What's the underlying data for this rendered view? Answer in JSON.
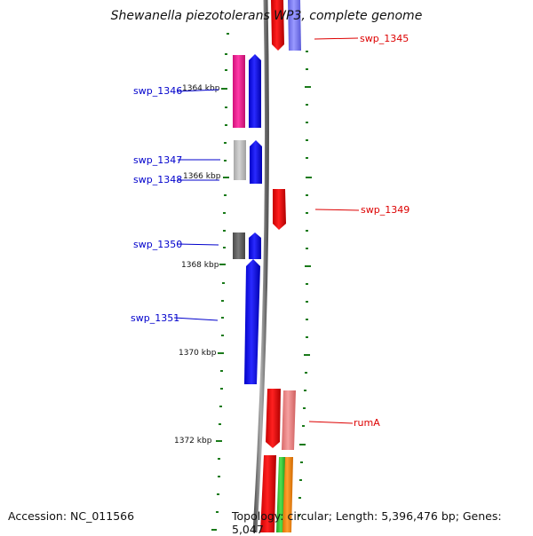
{
  "title": "Shewanella piezotolerans WP3, complete genome",
  "footer": {
    "accession": "Accession: NC_011566",
    "summary": "Topology: circular; Length: 5,396,476 bp; Genes: 5,047"
  },
  "colors": {
    "backbone": "#888888",
    "tick": "#1a7a1a",
    "label_left": "#0000cc",
    "label_right": "#dd0000",
    "blue_gene": "#0000ff",
    "red_gene": "#ff0000"
  },
  "tick_labels": [
    "1364 kbp",
    "1366 kbp",
    "1368 kbp",
    "1370 kbp",
    "1372 kbp"
  ],
  "genes": [
    {
      "name": "swp_1345",
      "side": "right",
      "color": "#ff0000"
    },
    {
      "name": "swp_1346",
      "side": "left",
      "color": "#0000ff"
    },
    {
      "name": "swp_1347",
      "side": "left",
      "color": "#0000ff"
    },
    {
      "name": "swp_1348",
      "side": "left",
      "color": "#0000ff"
    },
    {
      "name": "swp_1349",
      "side": "right",
      "color": "#ff0000"
    },
    {
      "name": "swp_1350",
      "side": "left",
      "color": "#0000ff"
    },
    {
      "name": "swp_1351",
      "side": "left",
      "color": "#0000ff"
    },
    {
      "name": "rumA",
      "side": "right",
      "color": "#ff0000"
    }
  ],
  "feature_colors": [
    "#ff1493",
    "#bbbbbb",
    "#666666",
    "#8080ff",
    "#f08080",
    "#32cd32",
    "#ff8c00"
  ]
}
